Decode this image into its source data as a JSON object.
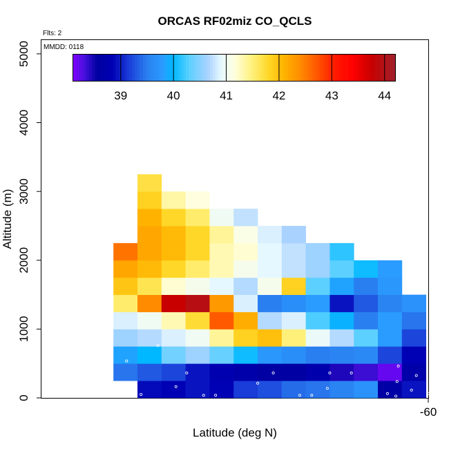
{
  "chart_data": {
    "type": "heatmap",
    "title": "ORCAS RF02miz CO_QCLS",
    "annotations": [
      "Flts: 2",
      "MMDD: 0118"
    ],
    "xlabel": "Latitude (deg N)",
    "ylabel": "Altitude (m)",
    "x_tick_labels": [
      "-60"
    ],
    "y_tick_labels": [
      "0",
      "1000",
      "2000",
      "3000",
      "4000",
      "5000"
    ],
    "ylim": [
      0,
      5200
    ],
    "y_ticks": [
      0,
      1000,
      2000,
      3000,
      4000,
      5000
    ],
    "colorbar": {
      "range": [
        38.1,
        44.2
      ],
      "ticks": [
        39,
        40,
        41,
        42,
        43,
        44
      ],
      "tick_labels": [
        "39",
        "40",
        "41",
        "42",
        "43",
        "44"
      ],
      "stops": [
        [
          38.1,
          "#7f00ff"
        ],
        [
          38.3,
          "#4b10e0"
        ],
        [
          38.55,
          "#0000a0"
        ],
        [
          38.85,
          "#0000b4"
        ],
        [
          39.15,
          "#1a3cd8"
        ],
        [
          39.5,
          "#2a7ff0"
        ],
        [
          39.8,
          "#2a9cff"
        ],
        [
          40.0,
          "#00b8ff"
        ],
        [
          40.3,
          "#5cd0ff"
        ],
        [
          40.65,
          "#a9d2ff"
        ],
        [
          40.9,
          "#e6f8ff"
        ],
        [
          41.15,
          "#ffffe0"
        ],
        [
          41.5,
          "#fff07a"
        ],
        [
          41.8,
          "#ffd728"
        ],
        [
          42.1,
          "#ffb300"
        ],
        [
          42.4,
          "#ff8c00"
        ],
        [
          42.7,
          "#ff5a00"
        ],
        [
          43.05,
          "#ff1a00"
        ],
        [
          43.4,
          "#ff0000"
        ],
        [
          43.75,
          "#c80000"
        ],
        [
          44.2,
          "#a0202a"
        ]
      ]
    },
    "cells": [
      {
        "x": 0,
        "y": 0,
        "v": 38.9
      },
      {
        "x": 1,
        "y": 0,
        "v": 38.85
      },
      {
        "x": 2,
        "y": 0,
        "v": 38.95
      },
      {
        "x": 3,
        "y": 0,
        "v": 38.85
      },
      {
        "x": 4,
        "y": 0,
        "v": 39.15
      },
      {
        "x": 5,
        "y": 0,
        "v": 39.25
      },
      {
        "x": 6,
        "y": 0,
        "v": 39.4
      },
      {
        "x": 7,
        "y": 0,
        "v": 39.45
      },
      {
        "x": 8,
        "y": 0,
        "v": 39.55
      },
      {
        "x": 9,
        "y": 0,
        "v": 39.7
      },
      {
        "x": 10,
        "y": 0,
        "v": 38.65
      },
      {
        "x": 11,
        "y": 0,
        "v": 38.95
      },
      {
        "x": -1,
        "y": 1,
        "v": 39.45
      },
      {
        "x": 0,
        "y": 1,
        "v": 39.3
      },
      {
        "x": 1,
        "y": 1,
        "v": 39.2
      },
      {
        "x": 2,
        "y": 1,
        "v": 38.95
      },
      {
        "x": 3,
        "y": 1,
        "v": 38.8
      },
      {
        "x": 4,
        "y": 1,
        "v": 38.7
      },
      {
        "x": 5,
        "y": 1,
        "v": 38.6
      },
      {
        "x": 6,
        "y": 1,
        "v": 38.6
      },
      {
        "x": 7,
        "y": 1,
        "v": 38.75
      },
      {
        "x": 8,
        "y": 1,
        "v": 38.45
      },
      {
        "x": 9,
        "y": 1,
        "v": 38.35
      },
      {
        "x": 10,
        "y": 1,
        "v": 38.2
      },
      {
        "x": 11,
        "y": 1,
        "v": 38.7
      },
      {
        "x": -1,
        "y": 2,
        "v": 39.85
      },
      {
        "x": 0,
        "y": 2,
        "v": 40.0
      },
      {
        "x": 1,
        "y": 2,
        "v": 40.4
      },
      {
        "x": 2,
        "y": 2,
        "v": 40.6
      },
      {
        "x": 3,
        "y": 2,
        "v": 40.35
      },
      {
        "x": 4,
        "y": 2,
        "v": 40.05
      },
      {
        "x": 5,
        "y": 2,
        "v": 39.75
      },
      {
        "x": 6,
        "y": 2,
        "v": 39.65
      },
      {
        "x": 7,
        "y": 2,
        "v": 39.5
      },
      {
        "x": 8,
        "y": 2,
        "v": 39.55
      },
      {
        "x": 9,
        "y": 2,
        "v": 39.6
      },
      {
        "x": 10,
        "y": 2,
        "v": 39.2
      },
      {
        "x": 11,
        "y": 2,
        "v": 38.85
      },
      {
        "x": -1,
        "y": 3,
        "v": 40.6
      },
      {
        "x": 0,
        "y": 3,
        "v": 40.7
      },
      {
        "x": 1,
        "y": 3,
        "v": 40.85
      },
      {
        "x": 2,
        "y": 3,
        "v": 41.0
      },
      {
        "x": 3,
        "y": 3,
        "v": 41.4
      },
      {
        "x": 4,
        "y": 3,
        "v": 41.85
      },
      {
        "x": 5,
        "y": 3,
        "v": 42.0
      },
      {
        "x": 6,
        "y": 3,
        "v": 41.5
      },
      {
        "x": 7,
        "y": 3,
        "v": 40.95
      },
      {
        "x": 8,
        "y": 3,
        "v": 40.7
      },
      {
        "x": 9,
        "y": 3,
        "v": 40.3
      },
      {
        "x": 10,
        "y": 3,
        "v": 39.8
      },
      {
        "x": 11,
        "y": 3,
        "v": 39.2
      },
      {
        "x": -1,
        "y": 4,
        "v": 40.85
      },
      {
        "x": 0,
        "y": 4,
        "v": 41.0
      },
      {
        "x": 1,
        "y": 4,
        "v": 41.3
      },
      {
        "x": 2,
        "y": 4,
        "v": 41.75
      },
      {
        "x": 3,
        "y": 4,
        "v": 42.7
      },
      {
        "x": 4,
        "y": 4,
        "v": 42.15
      },
      {
        "x": 5,
        "y": 4,
        "v": 40.7
      },
      {
        "x": 6,
        "y": 4,
        "v": 40.85
      },
      {
        "x": 7,
        "y": 4,
        "v": 40.25
      },
      {
        "x": 8,
        "y": 4,
        "v": 39.95
      },
      {
        "x": 9,
        "y": 4,
        "v": 39.5
      },
      {
        "x": 10,
        "y": 4,
        "v": 39.8
      },
      {
        "x": 11,
        "y": 4,
        "v": 39.45
      },
      {
        "x": -1,
        "y": 5,
        "v": 41.55
      },
      {
        "x": 0,
        "y": 5,
        "v": 42.4
      },
      {
        "x": 1,
        "y": 5,
        "v": 43.75
      },
      {
        "x": 2,
        "y": 5,
        "v": 43.95
      },
      {
        "x": 3,
        "y": 5,
        "v": 42.3
      },
      {
        "x": 4,
        "y": 5,
        "v": 40.85
      },
      {
        "x": 5,
        "y": 5,
        "v": 39.5
      },
      {
        "x": 6,
        "y": 5,
        "v": 39.65
      },
      {
        "x": 7,
        "y": 5,
        "v": 39.8
      },
      {
        "x": 8,
        "y": 5,
        "v": 38.95
      },
      {
        "x": 9,
        "y": 5,
        "v": 39.3
      },
      {
        "x": 10,
        "y": 5,
        "v": 39.55
      },
      {
        "x": 11,
        "y": 5,
        "v": 39.7
      },
      {
        "x": -1,
        "y": 6,
        "v": 41.95
      },
      {
        "x": 0,
        "y": 6,
        "v": 41.65
      },
      {
        "x": 1,
        "y": 6,
        "v": 41.2
      },
      {
        "x": 2,
        "y": 6,
        "v": 41.05
      },
      {
        "x": 3,
        "y": 6,
        "v": 40.9
      },
      {
        "x": 4,
        "y": 6,
        "v": 40.7
      },
      {
        "x": 5,
        "y": 6,
        "v": 41.05
      },
      {
        "x": 6,
        "y": 6,
        "v": 41.85
      },
      {
        "x": 7,
        "y": 6,
        "v": 40.3
      },
      {
        "x": 8,
        "y": 6,
        "v": 39.85
      },
      {
        "x": 9,
        "y": 6,
        "v": 39.5
      },
      {
        "x": 10,
        "y": 6,
        "v": 39.75
      },
      {
        "x": -1,
        "y": 7,
        "v": 42.2
      },
      {
        "x": 0,
        "y": 7,
        "v": 42.05
      },
      {
        "x": 1,
        "y": 7,
        "v": 41.8
      },
      {
        "x": 2,
        "y": 7,
        "v": 41.55
      },
      {
        "x": 3,
        "y": 7,
        "v": 41.3
      },
      {
        "x": 4,
        "y": 7,
        "v": 41.05
      },
      {
        "x": 5,
        "y": 7,
        "v": 40.9
      },
      {
        "x": 6,
        "y": 7,
        "v": 40.75
      },
      {
        "x": 7,
        "y": 7,
        "v": 40.6
      },
      {
        "x": 8,
        "y": 7,
        "v": 40.3
      },
      {
        "x": 9,
        "y": 7,
        "v": 40.05
      },
      {
        "x": 10,
        "y": 7,
        "v": 39.8
      },
      {
        "x": -1,
        "y": 8,
        "v": 42.55
      },
      {
        "x": 0,
        "y": 8,
        "v": 42.2
      },
      {
        "x": 1,
        "y": 8,
        "v": 42.05
      },
      {
        "x": 2,
        "y": 8,
        "v": 41.8
      },
      {
        "x": 3,
        "y": 8,
        "v": 41.3
      },
      {
        "x": 4,
        "y": 8,
        "v": 41.2
      },
      {
        "x": 5,
        "y": 8,
        "v": 40.9
      },
      {
        "x": 6,
        "y": 8,
        "v": 40.75
      },
      {
        "x": 7,
        "y": 8,
        "v": 40.6
      },
      {
        "x": 8,
        "y": 8,
        "v": 40.15
      },
      {
        "x": 0,
        "y": 9,
        "v": 42.2
      },
      {
        "x": 1,
        "y": 9,
        "v": 42.05
      },
      {
        "x": 2,
        "y": 9,
        "v": 41.8
      },
      {
        "x": 3,
        "y": 9,
        "v": 41.4
      },
      {
        "x": 4,
        "y": 9,
        "v": 41.1
      },
      {
        "x": 5,
        "y": 9,
        "v": 40.85
      },
      {
        "x": 6,
        "y": 9,
        "v": 40.65
      },
      {
        "x": 0,
        "y": 10,
        "v": 42.1
      },
      {
        "x": 1,
        "y": 10,
        "v": 41.8
      },
      {
        "x": 2,
        "y": 10,
        "v": 41.55
      },
      {
        "x": 3,
        "y": 10,
        "v": 41.0
      },
      {
        "x": 4,
        "y": 10,
        "v": 40.75
      },
      {
        "x": 0,
        "y": 11,
        "v": 41.85
      },
      {
        "x": 1,
        "y": 11,
        "v": 41.35
      },
      {
        "x": 2,
        "y": 11,
        "v": 41.15
      },
      {
        "x": 0,
        "y": 12,
        "v": 41.7
      }
    ],
    "markers": [
      {
        "x": -0.8,
        "y": 0.15
      },
      {
        "x": -0.35,
        "y": 0.2
      },
      {
        "x": 2.25,
        "y": 0.15
      },
      {
        "x": 2.75,
        "y": 0.15
      },
      {
        "x": 6.25,
        "y": 0.15
      },
      {
        "x": 6.75,
        "y": 0.15
      },
      {
        "x": 9.9,
        "y": 0.25
      },
      {
        "x": 10.25,
        "y": 0.1
      },
      {
        "x": 11.6,
        "y": 0.25
      },
      {
        "x": 12.2,
        "y": 0.15
      },
      {
        "x": 10.9,
        "y": 0.45
      },
      {
        "x": -0.9,
        "y": 0.45
      },
      {
        "x": 1.1,
        "y": 0.65
      },
      {
        "x": 7.4,
        "y": 0.55
      },
      {
        "x": 4.5,
        "y": 0.85
      },
      {
        "x": 10.3,
        "y": 0.95
      },
      {
        "x": 11.1,
        "y": 1.3
      },
      {
        "x": 1.55,
        "y": 1.45
      },
      {
        "x": 5.15,
        "y": 1.45
      },
      {
        "x": 7.5,
        "y": 1.45
      },
      {
        "x": 8.4,
        "y": 1.45
      },
      {
        "x": 11.9,
        "y": 1.45
      },
      {
        "x": -0.95,
        "y": 2.15
      },
      {
        "x": 10.35,
        "y": 1.85
      },
      {
        "x": 0.35,
        "y": 3.05
      }
    ]
  }
}
